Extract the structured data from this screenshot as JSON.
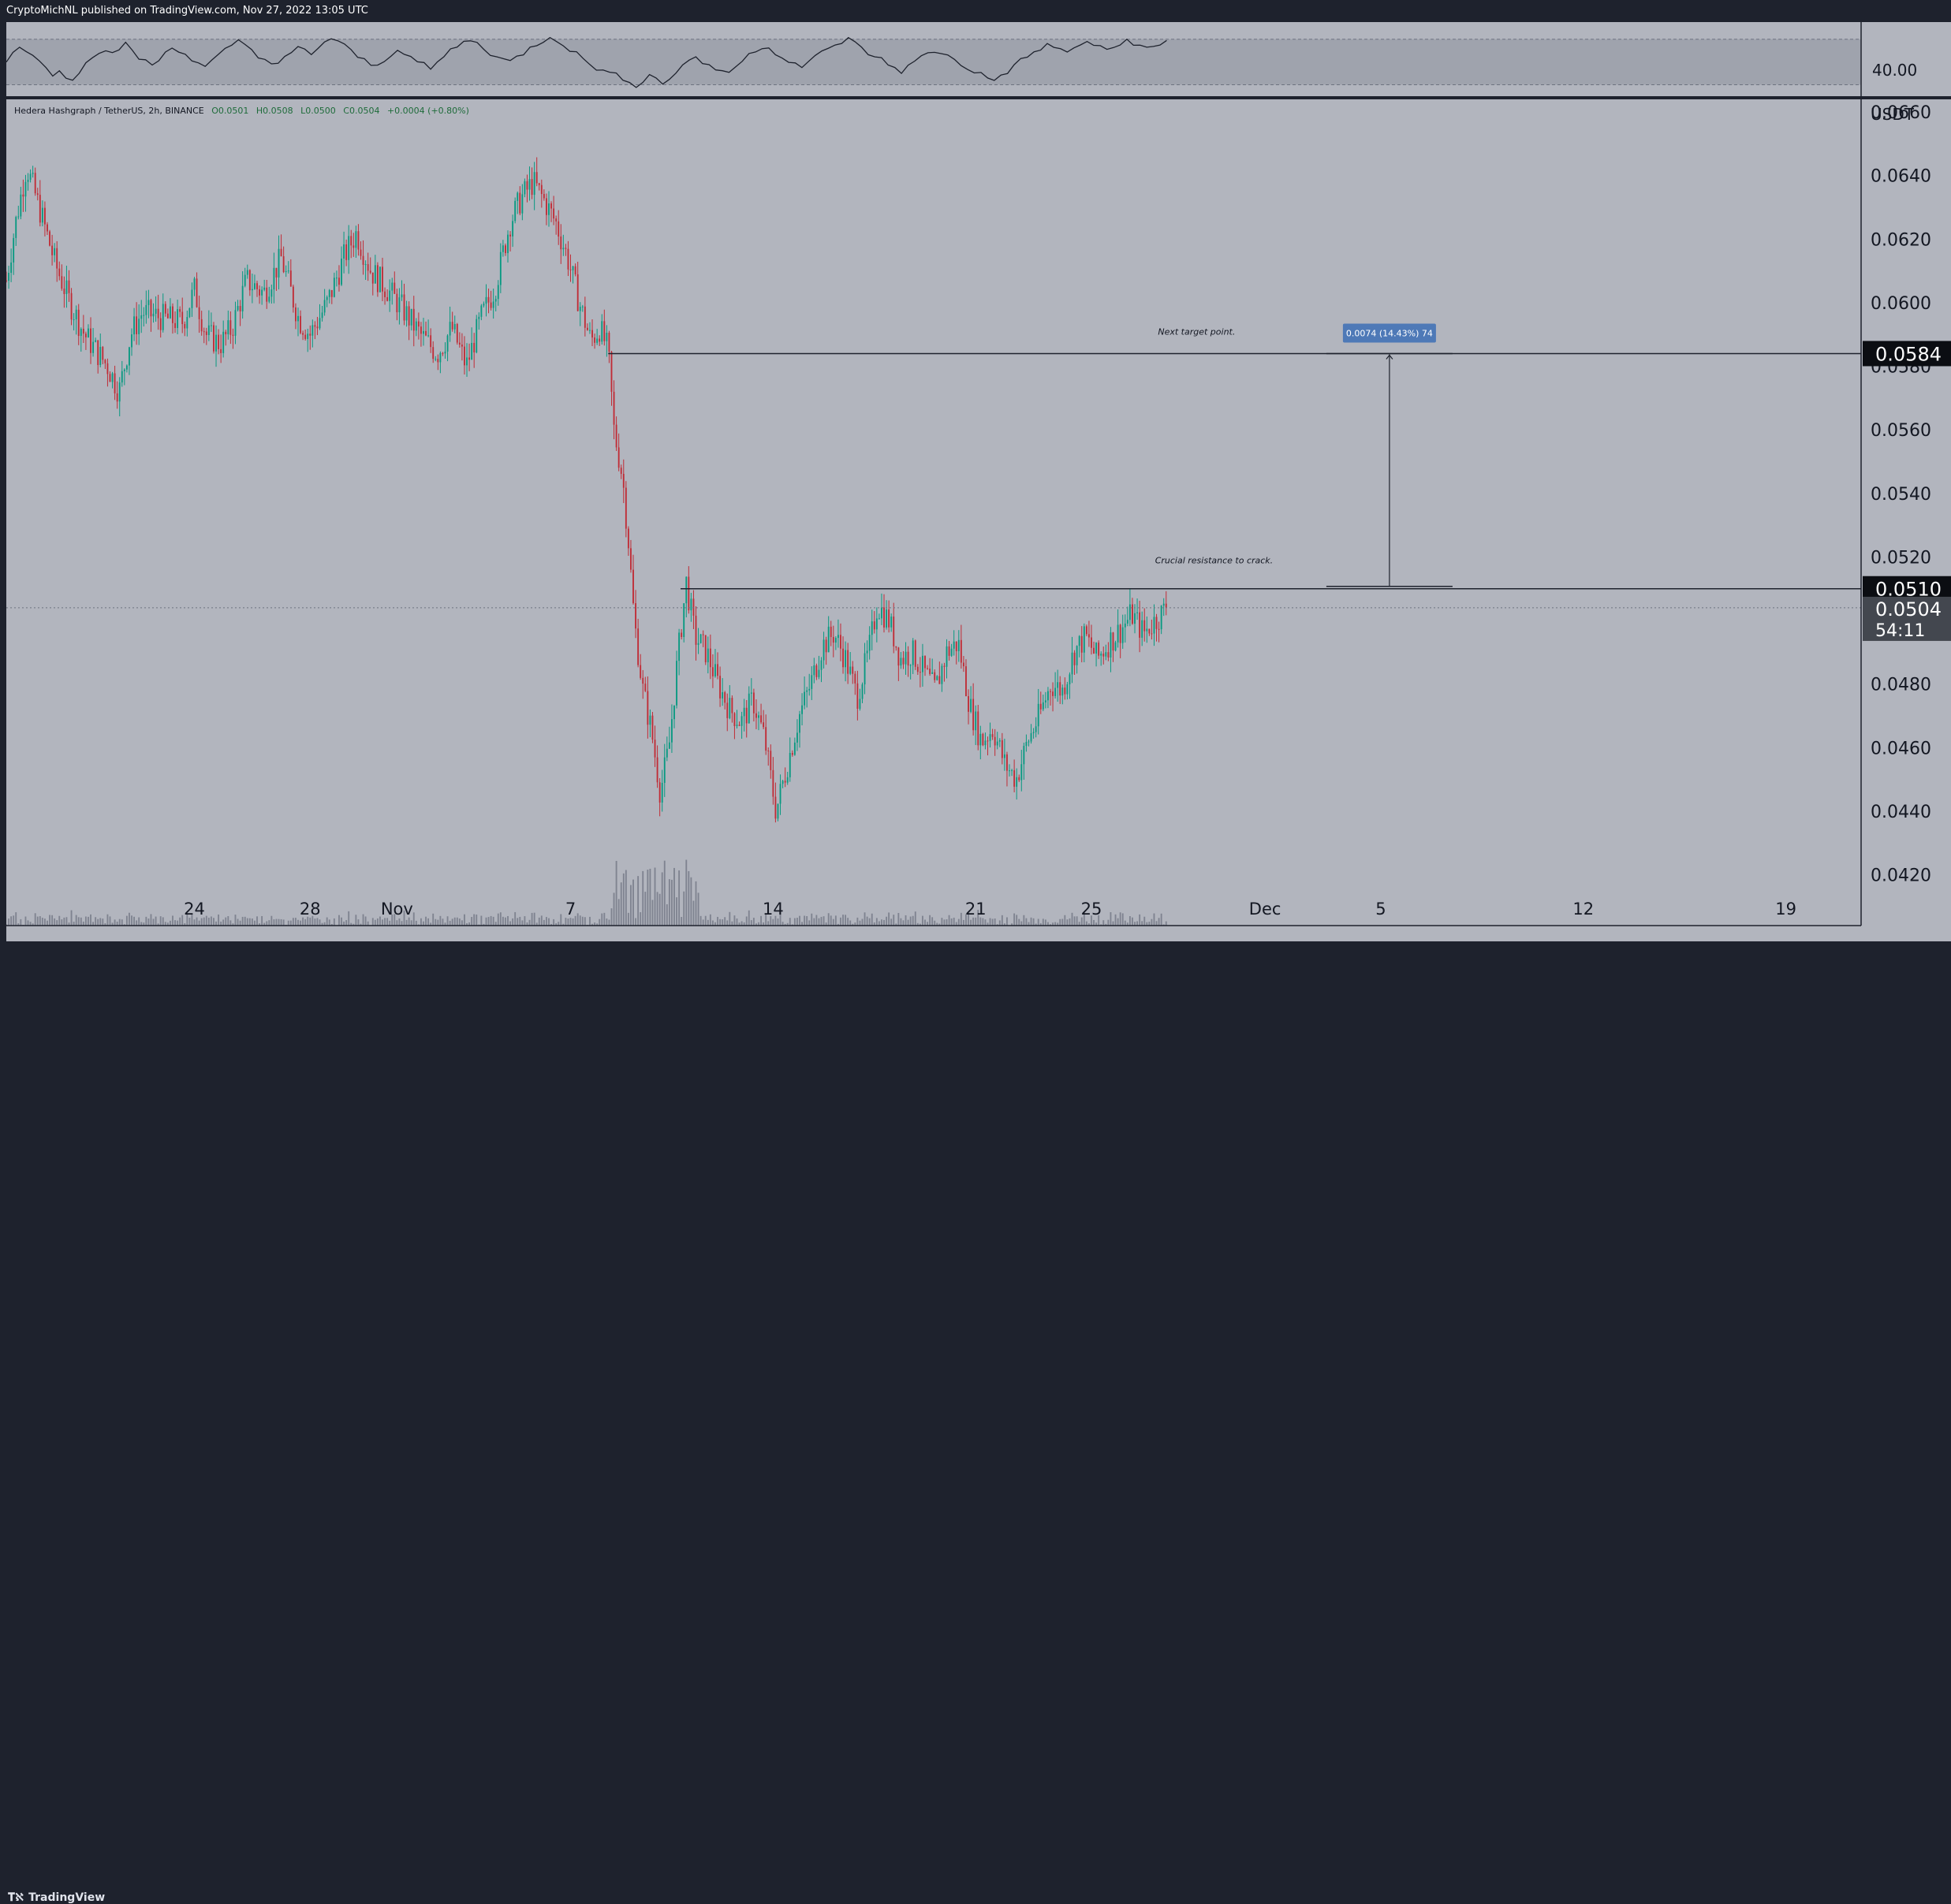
{
  "header": {
    "publish_text": "CryptoMichNL published on TradingView.com, Nov 27, 2022 13:05 UTC"
  },
  "footer": {
    "logo_text": "TradingView"
  },
  "colors": {
    "background": "#b2b5be",
    "frame": "#1e222d",
    "up": "#089981",
    "down": "#c02c36",
    "line": "#1e222d",
    "measure_box": "#4e79b7"
  },
  "chart_data": {
    "type": "candlestick",
    "symbol_line": "Hedera Hashgraph / TetherUS, 2h, BINANCE",
    "ohlc": {
      "o": "O0.0501",
      "h": "H0.0508",
      "l": "L0.0500",
      "c": "C0.0504",
      "chg": "+0.0004 (+0.80%)"
    },
    "y_unit": "USDT",
    "ylim": [
      0.0404,
      0.0664
    ],
    "y_ticks": [
      "0.0660",
      "0.0640",
      "0.0620",
      "0.0600",
      "0.0580",
      "0.0560",
      "0.0540",
      "0.0520",
      "0.0480",
      "0.0460",
      "0.0440",
      "0.0420"
    ],
    "x_ticks": [
      {
        "label": "24",
        "t": 0.0
      },
      {
        "label": "28",
        "t": 4.0
      },
      {
        "label": "Nov",
        "t": 7.0
      },
      {
        "label": "7",
        "t": 13.0
      },
      {
        "label": "14",
        "t": 20.0
      },
      {
        "label": "21",
        "t": 27.0
      },
      {
        "label": "25",
        "t": 31.0
      },
      {
        "label": "Dec",
        "t": 37.0
      },
      {
        "label": "5",
        "t": 41.0
      },
      {
        "label": "12",
        "t": 48.0
      },
      {
        "label": "19",
        "t": 55.0
      }
    ],
    "xlim": [
      -6.5,
      57.6
    ],
    "price_path": [
      [
        -6.5,
        0.0607
      ],
      [
        -6.2,
        0.0624
      ],
      [
        -5.8,
        0.0643
      ],
      [
        -5.3,
        0.0628
      ],
      [
        -4.8,
        0.0612
      ],
      [
        -4.3,
        0.06
      ],
      [
        -3.8,
        0.059
      ],
      [
        -3.4,
        0.0585
      ],
      [
        -3.0,
        0.058
      ],
      [
        -2.6,
        0.0572
      ],
      [
        -2.2,
        0.059
      ],
      [
        -1.8,
        0.0597
      ],
      [
        -1.0,
        0.0595
      ],
      [
        -0.4,
        0.0594
      ],
      [
        0.0,
        0.0604
      ],
      [
        0.4,
        0.059
      ],
      [
        0.9,
        0.0587
      ],
      [
        1.3,
        0.0592
      ],
      [
        1.8,
        0.0607
      ],
      [
        2.4,
        0.0603
      ],
      [
        3.0,
        0.0614
      ],
      [
        3.6,
        0.0595
      ],
      [
        4.0,
        0.059
      ],
      [
        4.6,
        0.06
      ],
      [
        5.2,
        0.0615
      ],
      [
        5.6,
        0.0622
      ],
      [
        6.1,
        0.061
      ],
      [
        6.6,
        0.0605
      ],
      [
        7.2,
        0.0598
      ],
      [
        7.8,
        0.059
      ],
      [
        8.4,
        0.0584
      ],
      [
        8.9,
        0.0592
      ],
      [
        9.4,
        0.058
      ],
      [
        9.9,
        0.0595
      ],
      [
        10.4,
        0.0605
      ],
      [
        10.9,
        0.0625
      ],
      [
        11.3,
        0.0633
      ],
      [
        11.7,
        0.0638
      ],
      [
        12.1,
        0.0632
      ],
      [
        12.5,
        0.0625
      ],
      [
        12.9,
        0.0614
      ],
      [
        13.3,
        0.06
      ],
      [
        13.7,
        0.0588
      ],
      [
        14.0,
        0.0592
      ],
      [
        14.3,
        0.0585
      ],
      [
        14.5,
        0.056
      ],
      [
        14.8,
        0.0545
      ],
      [
        15.0,
        0.0525
      ],
      [
        15.2,
        0.05
      ],
      [
        15.5,
        0.0478
      ],
      [
        15.8,
        0.0465
      ],
      [
        16.1,
        0.0446
      ],
      [
        16.4,
        0.046
      ],
      [
        16.7,
        0.0488
      ],
      [
        17.0,
        0.0512
      ],
      [
        17.3,
        0.0495
      ],
      [
        17.7,
        0.049
      ],
      [
        18.1,
        0.048
      ],
      [
        18.5,
        0.0472
      ],
      [
        18.9,
        0.0468
      ],
      [
        19.3,
        0.0475
      ],
      [
        19.7,
        0.0463
      ],
      [
        20.1,
        0.044
      ],
      [
        20.5,
        0.0455
      ],
      [
        20.9,
        0.047
      ],
      [
        21.3,
        0.048
      ],
      [
        21.7,
        0.0492
      ],
      [
        22.1,
        0.0496
      ],
      [
        22.5,
        0.0488
      ],
      [
        22.9,
        0.0476
      ],
      [
        23.3,
        0.049
      ],
      [
        23.6,
        0.0505
      ],
      [
        24.0,
        0.05
      ],
      [
        24.4,
        0.0488
      ],
      [
        24.8,
        0.049
      ],
      [
        25.2,
        0.0484
      ],
      [
        25.6,
        0.0478
      ],
      [
        26.0,
        0.049
      ],
      [
        26.4,
        0.0493
      ],
      [
        26.8,
        0.0473
      ],
      [
        27.2,
        0.0462
      ],
      [
        27.6,
        0.0466
      ],
      [
        28.0,
        0.0455
      ],
      [
        28.4,
        0.045
      ],
      [
        28.8,
        0.0462
      ],
      [
        29.2,
        0.047
      ],
      [
        29.6,
        0.048
      ],
      [
        30.0,
        0.0478
      ],
      [
        30.4,
        0.049
      ],
      [
        30.8,
        0.0495
      ],
      [
        31.2,
        0.0488
      ],
      [
        31.6,
        0.0493
      ],
      [
        32.0,
        0.0497
      ],
      [
        32.4,
        0.0502
      ],
      [
        32.8,
        0.0496
      ],
      [
        33.2,
        0.05
      ],
      [
        33.6,
        0.0504
      ]
    ],
    "horizontal_levels": [
      {
        "price": 0.0584,
        "label": "0.0584",
        "annotation": "Next target point."
      },
      {
        "price": 0.051,
        "label": "0.0510",
        "annotation": "Crucial resistance to crack."
      }
    ],
    "current_price": {
      "label": "0.0504",
      "countdown": "54:11",
      "price": 0.0504
    },
    "measure": {
      "text": "0.0074 (14.43%) 74",
      "t": 41.3,
      "from": 0.051,
      "to": 0.0584
    },
    "rsi": {
      "level_label": "40.00",
      "upper_band": 70,
      "lower_band": 30,
      "ylim": [
        20,
        85
      ],
      "values": [
        52,
        58,
        64,
        61,
        55,
        50,
        46,
        40,
        44,
        38,
        36,
        42,
        48,
        55,
        60,
        58,
        56,
        62,
        66,
        60,
        54,
        50,
        47,
        52,
        58,
        63,
        61,
        57,
        52,
        48,
        45,
        50,
        55,
        60,
        65,
        68,
        66,
        61,
        56,
        52,
        49,
        47,
        53,
        58,
        62,
        60,
        57,
        63,
        67,
        71,
        68,
        64,
        59,
        55,
        51,
        48,
        46,
        52,
        57,
        61,
        59,
        54,
        50,
        47,
        44,
        49,
        55,
        60,
        64,
        67,
        70,
        66,
        62,
        58,
        55,
        52,
        50,
        54,
        58,
        62,
        66,
        69,
        72,
        70,
        66,
        61,
        57,
        53,
        48,
        45,
        42,
        40,
        38,
        36,
        33,
        30,
        34,
        38,
        35,
        32,
        36,
        41,
        46,
        52,
        55,
        50,
        47,
        44,
        40,
        42,
        46,
        51,
        56,
        60,
        64,
        62,
        58,
        55,
        52,
        49,
        46,
        50,
        54,
        58,
        61,
        65,
        68,
        70,
        66,
        62,
        58,
        55,
        52,
        48,
        45,
        42,
        46,
        50,
        54,
        57,
        60,
        58,
        55,
        52,
        48,
        45,
        42,
        39,
        36,
        34,
        38,
        42,
        46,
        51,
        55,
        58,
        62,
        65,
        63,
        60,
        58,
        62,
        66,
        68,
        65,
        62,
        60,
        63,
        66,
        69,
        67,
        64,
        61,
        63,
        65,
        68
      ]
    },
    "volume_scale": 1.0
  }
}
